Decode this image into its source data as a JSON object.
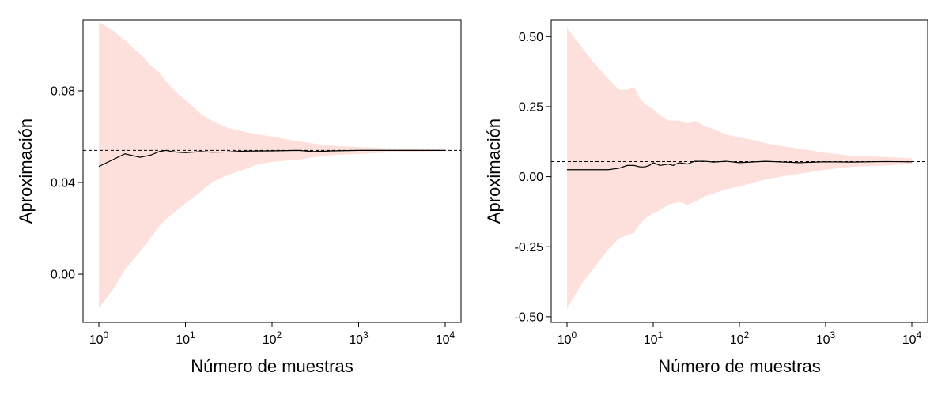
{
  "chart_data": [
    {
      "type": "line",
      "xlabel": "Número de muestras",
      "ylabel": "Aproximación",
      "x_scale": "log",
      "xlim": [
        1,
        10000
      ],
      "ylim": [
        -0.021,
        0.111
      ],
      "x_ticks": [
        {
          "value": 1,
          "base": "10",
          "exp": "0"
        },
        {
          "value": 10,
          "base": "10",
          "exp": "1"
        },
        {
          "value": 100,
          "base": "10",
          "exp": "2"
        },
        {
          "value": 1000,
          "base": "10",
          "exp": "3"
        },
        {
          "value": 10000,
          "base": "10",
          "exp": "4"
        }
      ],
      "y_ticks": [
        {
          "value": 0.0,
          "label": "0.00"
        },
        {
          "value": 0.04,
          "label": "0.04"
        },
        {
          "value": 0.08,
          "label": "0.08"
        }
      ],
      "reference_value": 0.054,
      "band_color": "#fde0dc",
      "line_color": "#000000",
      "band": {
        "x": [
          1,
          1.5,
          2,
          3,
          4,
          5,
          6,
          8,
          10,
          15,
          20,
          30,
          50,
          70,
          100,
          200,
          300,
          500,
          1000,
          2000,
          5000,
          10000
        ],
        "upper": [
          0.11,
          0.106,
          0.102,
          0.096,
          0.091,
          0.088,
          0.084,
          0.079,
          0.076,
          0.07,
          0.067,
          0.064,
          0.062,
          0.061,
          0.06,
          0.058,
          0.057,
          0.056,
          0.0555,
          0.055,
          0.0545,
          0.0543
        ],
        "lower": [
          -0.015,
          -0.006,
          0.002,
          0.01,
          0.016,
          0.021,
          0.024,
          0.028,
          0.031,
          0.036,
          0.04,
          0.043,
          0.046,
          0.048,
          0.049,
          0.05,
          0.051,
          0.052,
          0.0525,
          0.053,
          0.0535,
          0.0537
        ]
      },
      "line": {
        "x": [
          1,
          2,
          3,
          4,
          5,
          6,
          7,
          8,
          10,
          15,
          20,
          30,
          50,
          100,
          200,
          300,
          500,
          1000,
          2000,
          5000,
          10000
        ],
        "y": [
          0.047,
          0.0525,
          0.051,
          0.052,
          0.0535,
          0.054,
          0.0535,
          0.0532,
          0.053,
          0.0535,
          0.0532,
          0.0533,
          0.0537,
          0.0538,
          0.054,
          0.0535,
          0.0538,
          0.054,
          0.054,
          0.054,
          0.054
        ]
      }
    },
    {
      "type": "line",
      "xlabel": "Número de muestras",
      "ylabel": "Aproximación",
      "x_scale": "log",
      "xlim": [
        1,
        10000
      ],
      "ylim": [
        -0.52,
        0.56
      ],
      "x_ticks": [
        {
          "value": 1,
          "base": "10",
          "exp": "0"
        },
        {
          "value": 10,
          "base": "10",
          "exp": "1"
        },
        {
          "value": 100,
          "base": "10",
          "exp": "2"
        },
        {
          "value": 1000,
          "base": "10",
          "exp": "3"
        },
        {
          "value": 10000,
          "base": "10",
          "exp": "4"
        }
      ],
      "y_ticks": [
        {
          "value": -0.5,
          "label": "-0.50"
        },
        {
          "value": -0.25,
          "label": "-0.25"
        },
        {
          "value": 0.0,
          "label": "0.00"
        },
        {
          "value": 0.25,
          "label": "0.25"
        },
        {
          "value": 0.5,
          "label": "0.50"
        }
      ],
      "reference_value": 0.054,
      "band_color": "#fde0dc",
      "line_color": "#000000",
      "band": {
        "x": [
          1,
          1.5,
          2,
          3,
          4,
          5,
          6,
          7,
          8,
          10,
          12,
          15,
          20,
          25,
          30,
          40,
          50,
          70,
          100,
          150,
          200,
          300,
          500,
          1000,
          2000,
          5000,
          10000
        ],
        "upper": [
          0.53,
          0.46,
          0.41,
          0.35,
          0.31,
          0.31,
          0.32,
          0.28,
          0.26,
          0.24,
          0.22,
          0.2,
          0.2,
          0.19,
          0.2,
          0.18,
          0.17,
          0.15,
          0.14,
          0.13,
          0.12,
          0.11,
          0.1,
          0.085,
          0.075,
          0.07,
          0.065
        ],
        "lower": [
          -0.47,
          -0.38,
          -0.33,
          -0.26,
          -0.22,
          -0.21,
          -0.2,
          -0.17,
          -0.15,
          -0.13,
          -0.12,
          -0.1,
          -0.09,
          -0.1,
          -0.09,
          -0.07,
          -0.06,
          -0.045,
          -0.035,
          -0.02,
          -0.01,
          0.0,
          0.01,
          0.025,
          0.035,
          0.04,
          0.045
        ]
      },
      "line": {
        "x": [
          1,
          2,
          3,
          4,
          5,
          6,
          7,
          8,
          9,
          10,
          12,
          15,
          17,
          20,
          25,
          30,
          40,
          50,
          70,
          100,
          200,
          500,
          1000,
          2000,
          5000,
          10000
        ],
        "y": [
          0.025,
          0.025,
          0.025,
          0.03,
          0.04,
          0.04,
          0.035,
          0.035,
          0.04,
          0.05,
          0.04,
          0.045,
          0.04,
          0.05,
          0.045,
          0.055,
          0.055,
          0.052,
          0.055,
          0.05,
          0.055,
          0.05,
          0.053,
          0.052,
          0.054,
          0.053
        ]
      }
    }
  ]
}
